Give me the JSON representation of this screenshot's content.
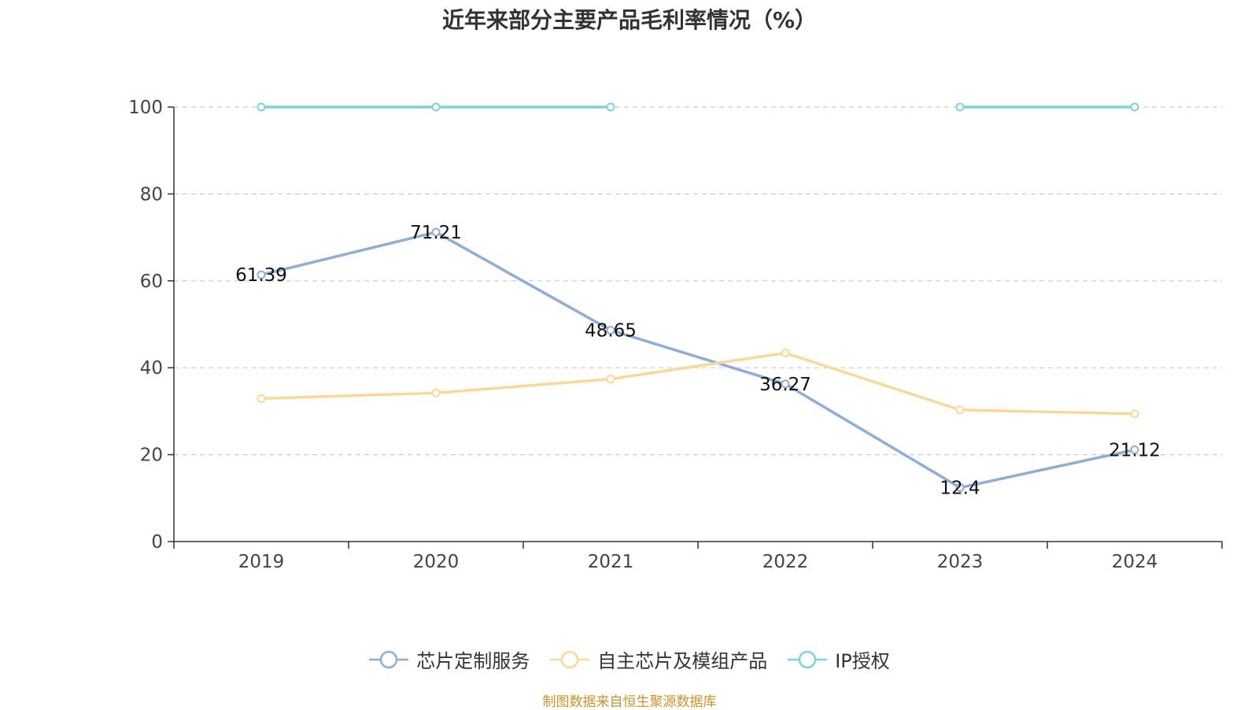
{
  "chart_data": {
    "type": "line",
    "title": "近年来部分主要产品毛利率情况（%）",
    "xlabel": "",
    "ylabel": "",
    "categories": [
      "2019",
      "2020",
      "2021",
      "2022",
      "2023",
      "2024"
    ],
    "ylim": [
      0,
      100
    ],
    "yticks": [
      0,
      20,
      40,
      60,
      80,
      100
    ],
    "grid": true,
    "legend_position": "bottom",
    "series": [
      {
        "name": "芯片定制服务",
        "color": "#8eaed8",
        "values": [
          61.39,
          71.21,
          48.65,
          36.27,
          12.4,
          21.12
        ],
        "data_labels": [
          "61.39",
          "71.21",
          "48.65",
          "36.27",
          "12.4",
          "21.12"
        ]
      },
      {
        "name": "自主芯片及模组产品",
        "color": "#fbd89a",
        "values": [
          32.9,
          34.2,
          37.4,
          43.4,
          30.3,
          29.4
        ]
      },
      {
        "name": "IP授权",
        "color": "#7fd2da",
        "values": [
          100,
          100,
          100,
          null,
          100,
          100
        ]
      }
    ]
  },
  "source_note": "制图数据来自恒生聚源数据库"
}
